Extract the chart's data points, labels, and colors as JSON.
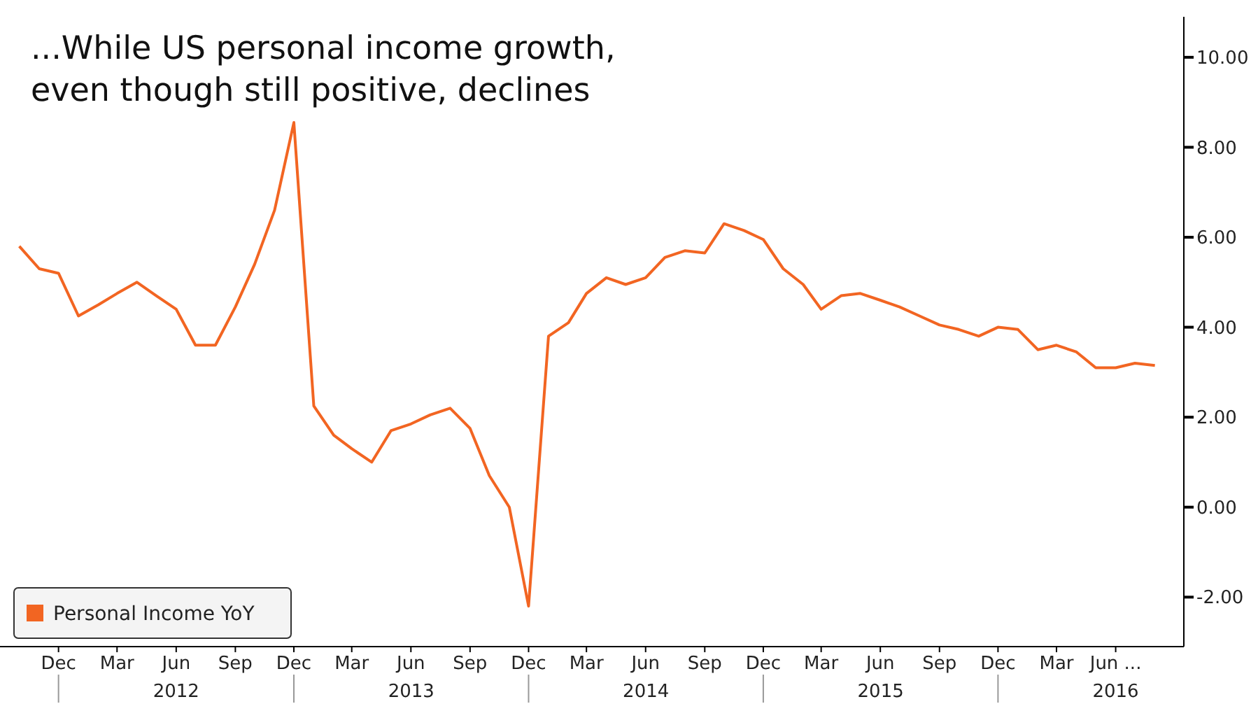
{
  "chart_data": {
    "type": "line",
    "title": "...While US personal income growth,\neven though still positive, declines",
    "x": [
      "2011-10",
      "2011-11",
      "2011-12",
      "2012-01",
      "2012-02",
      "2012-03",
      "2012-04",
      "2012-05",
      "2012-06",
      "2012-07",
      "2012-08",
      "2012-09",
      "2012-10",
      "2012-11",
      "2012-12",
      "2013-01",
      "2013-02",
      "2013-03",
      "2013-04",
      "2013-05",
      "2013-06",
      "2013-07",
      "2013-08",
      "2013-09",
      "2013-10",
      "2013-11",
      "2013-12",
      "2014-01",
      "2014-02",
      "2014-03",
      "2014-04",
      "2014-05",
      "2014-06",
      "2014-07",
      "2014-08",
      "2014-09",
      "2014-10",
      "2014-11",
      "2014-12",
      "2015-01",
      "2015-02",
      "2015-03",
      "2015-04",
      "2015-05",
      "2015-06",
      "2015-07",
      "2015-08",
      "2015-09",
      "2015-10",
      "2015-11",
      "2015-12",
      "2016-01",
      "2016-02",
      "2016-03",
      "2016-04",
      "2016-05",
      "2016-06",
      "2016-07",
      "2016-08"
    ],
    "series": [
      {
        "name": "Personal Income YoY",
        "color": "#f26522",
        "values": [
          5.8,
          5.3,
          5.2,
          4.25,
          4.5,
          4.75,
          5.0,
          4.7,
          4.4,
          3.6,
          3.6,
          4.45,
          5.4,
          6.6,
          8.55,
          2.25,
          1.6,
          1.3,
          1.0,
          1.7,
          1.85,
          2.05,
          2.2,
          1.75,
          0.7,
          0.0,
          -2.2,
          3.8,
          4.1,
          4.75,
          5.1,
          4.95,
          5.1,
          5.55,
          5.7,
          5.65,
          6.3,
          6.15,
          5.95,
          5.3,
          4.95,
          4.4,
          4.7,
          4.75,
          4.6,
          4.45,
          4.25,
          4.05,
          3.95,
          3.8,
          4.0,
          3.95,
          3.5,
          3.6,
          3.45,
          3.1,
          3.1,
          3.2,
          3.15
        ]
      }
    ],
    "xlim": [
      "2011-09-01",
      "2016-09-15"
    ],
    "xticks": [
      {
        "value": "2011-12",
        "label": "Dec"
      },
      {
        "value": "2012-03",
        "label": "Mar"
      },
      {
        "value": "2012-06",
        "label": "Jun"
      },
      {
        "value": "2012-09",
        "label": "Sep"
      },
      {
        "value": "2012-12",
        "label": "Dec"
      },
      {
        "value": "2013-03",
        "label": "Mar"
      },
      {
        "value": "2013-06",
        "label": "Jun"
      },
      {
        "value": "2013-09",
        "label": "Sep"
      },
      {
        "value": "2013-12",
        "label": "Dec"
      },
      {
        "value": "2014-03",
        "label": "Mar"
      },
      {
        "value": "2014-06",
        "label": "Jun"
      },
      {
        "value": "2014-09",
        "label": "Sep"
      },
      {
        "value": "2014-12",
        "label": "Dec"
      },
      {
        "value": "2015-03",
        "label": "Mar"
      },
      {
        "value": "2015-06",
        "label": "Jun"
      },
      {
        "value": "2015-09",
        "label": "Sep"
      },
      {
        "value": "2015-12",
        "label": "Dec"
      },
      {
        "value": "2016-03",
        "label": "Mar"
      },
      {
        "value": "2016-06",
        "label": "Jun ..."
      }
    ],
    "annotations": [
      "2012",
      "2013",
      "2014",
      "2015",
      "2016"
    ],
    "ylim": [
      -3.1,
      10.9
    ],
    "yticks": [
      {
        "value": 10,
        "label": "10.00"
      },
      {
        "value": 8,
        "label": "8.00"
      },
      {
        "value": 6,
        "label": "6.00"
      },
      {
        "value": 4,
        "label": "4.00"
      },
      {
        "value": 2,
        "label": "2.00"
      },
      {
        "value": 0,
        "label": "0.00"
      },
      {
        "value": -2,
        "label": "-2.00"
      }
    ],
    "grid": false,
    "legend": "bottom left",
    "line_style": "solid"
  }
}
